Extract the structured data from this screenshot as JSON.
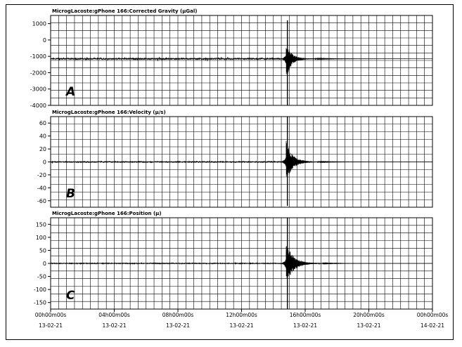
{
  "chart_data": {
    "type": "line",
    "x_tick_labels": [
      {
        "time": "00h00m00s",
        "date": "13-02-21"
      },
      {
        "time": "04h00m00s",
        "date": "13-02-21"
      },
      {
        "time": "08h00m00s",
        "date": "13-02-21"
      },
      {
        "time": "12h00m00s",
        "date": "13-02-21"
      },
      {
        "time": "16h00m00s",
        "date": "13-02-21"
      },
      {
        "time": "20h00m00s",
        "date": "13-02-21"
      },
      {
        "time": "00h00m00s",
        "date": "14-02-21"
      }
    ],
    "x_range_hours": [
      0,
      24
    ],
    "grid": true,
    "panels": [
      {
        "letter": "A",
        "title": "MicrogLacoste:gPhone 166:Corrected Gravity (µGal)",
        "y_ticks": [
          1000,
          0,
          -1000,
          -2000,
          -3000,
          -4000
        ],
        "ylim": [
          -4000,
          1500
        ],
        "series": {
          "baseline": -1150,
          "noise": 45,
          "event_hour": 14.8,
          "event_peak_high": 1200,
          "event_peak_low": -4000,
          "decay_hours": 0.6
        }
      },
      {
        "letter": "B",
        "title": "MicrogLacoste:gPhone 166:Velocity (µ/s)",
        "y_ticks": [
          60,
          40,
          20,
          0,
          -20,
          -40,
          -60
        ],
        "ylim": [
          -70,
          70
        ],
        "series": {
          "baseline": 0,
          "noise": 0.8,
          "event_hour": 14.8,
          "event_peak_high": 70,
          "event_peak_low": -68,
          "decay_hours": 0.8
        }
      },
      {
        "letter": "C",
        "title": "MicrogLacoste:gPhone 166:Position (µ)",
        "y_ticks": [
          150,
          100,
          50,
          0,
          -50,
          -100,
          -150
        ],
        "ylim": [
          -175,
          175
        ],
        "series": {
          "baseline": 0,
          "noise": 1.5,
          "event_hour": 14.8,
          "event_peak_high": 175,
          "event_peak_low": -175,
          "decay_hours": 0.9
        }
      }
    ]
  }
}
